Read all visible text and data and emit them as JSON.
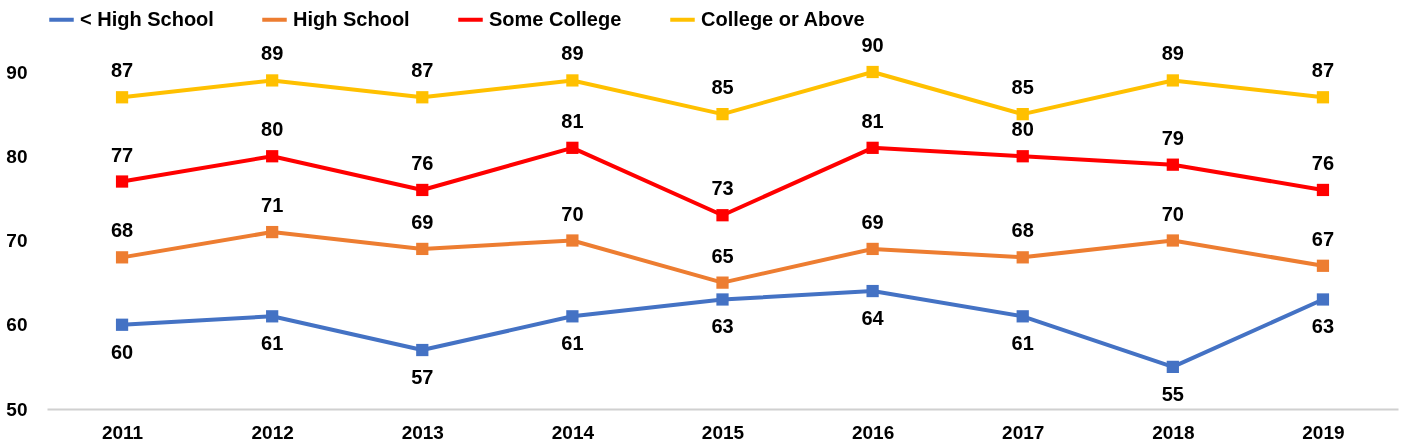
{
  "chart_data": {
    "type": "line",
    "categories": [
      "2011",
      "2012",
      "2013",
      "2014",
      "2015",
      "2016",
      "2017",
      "2018",
      "2019"
    ],
    "series": [
      {
        "name": "< High School",
        "color": "#4472c4",
        "values": [
          60,
          61,
          57,
          61,
          63,
          64,
          61,
          55,
          63
        ]
      },
      {
        "name": "High School",
        "color": "#ed7d31",
        "values": [
          68,
          71,
          69,
          70,
          65,
          69,
          68,
          70,
          67
        ]
      },
      {
        "name": "Some College",
        "color": "#ff0000",
        "values": [
          77,
          80,
          76,
          81,
          73,
          81,
          80,
          79,
          76
        ]
      },
      {
        "name": "College or Above",
        "color": "#ffc000",
        "values": [
          87,
          89,
          87,
          89,
          85,
          90,
          85,
          89,
          87
        ]
      }
    ],
    "ylim": [
      50,
      90
    ],
    "yticks": [
      50,
      60,
      70,
      80,
      90
    ],
    "grid": false,
    "legend": "top",
    "marker": "square",
    "line_style": "solid",
    "data_labels": true
  }
}
